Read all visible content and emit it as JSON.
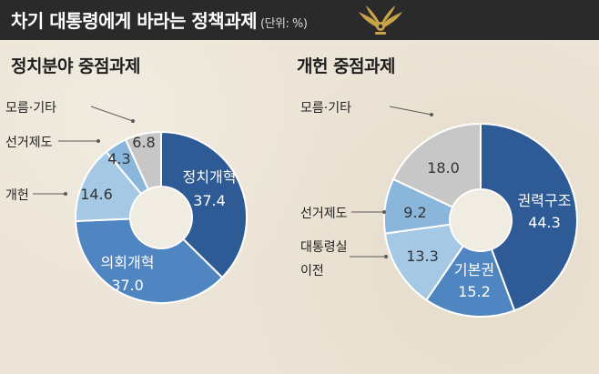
{
  "header": {
    "title": "차기 대통령에게 바라는 정책과제",
    "unit": "(단위: %)"
  },
  "emblem": {
    "icon": "phoenix-emblem-icon",
    "color": "#c9a24a"
  },
  "chart_data": [
    {
      "type": "pie",
      "title": "정치분야 중점과제",
      "slices": [
        {
          "label": "정치개혁",
          "value": 37.4,
          "value_text": "37.4",
          "color": "#2e5a95",
          "text_color": "#ffffff",
          "label_inside": true
        },
        {
          "label": "의회개혁",
          "value": 37.0,
          "value_text": "37.0",
          "color": "#4f86c2",
          "text_color": "#ffffff",
          "label_inside": true
        },
        {
          "label": "개헌",
          "value": 14.6,
          "value_text": "14.6",
          "color": "#a5c8e5",
          "text_color": "#333333",
          "label_inside": false
        },
        {
          "label": "선거제도",
          "value": 4.3,
          "value_text": "4.3",
          "color": "#8ab6dc",
          "text_color": "#333333",
          "label_inside": false
        },
        {
          "label": "모름·기타",
          "value": 6.8,
          "value_text": "6.8",
          "color": "#c7c7c7",
          "text_color": "#333333",
          "label_inside": false
        }
      ]
    },
    {
      "type": "pie",
      "title": "개헌 중점과제",
      "slices": [
        {
          "label": "권력구조",
          "value": 44.3,
          "value_text": "44.3",
          "color": "#2e5a95",
          "text_color": "#ffffff",
          "label_inside": true
        },
        {
          "label": "기본권",
          "value": 15.2,
          "value_text": "15.2",
          "color": "#4f86c2",
          "text_color": "#ffffff",
          "label_inside": true
        },
        {
          "label": "대통령실 이전",
          "value": 13.3,
          "value_text": "13.3",
          "color": "#a5c8e5",
          "text_color": "#333333",
          "label_inside": false
        },
        {
          "label": "선거제도",
          "value": 9.2,
          "value_text": "9.2",
          "color": "#8ab6dc",
          "text_color": "#333333",
          "label_inside": false
        },
        {
          "label": "모름·기타",
          "value": 18.0,
          "value_text": "18.0",
          "color": "#c7c7c7",
          "text_color": "#333333",
          "label_inside": false
        }
      ]
    }
  ]
}
